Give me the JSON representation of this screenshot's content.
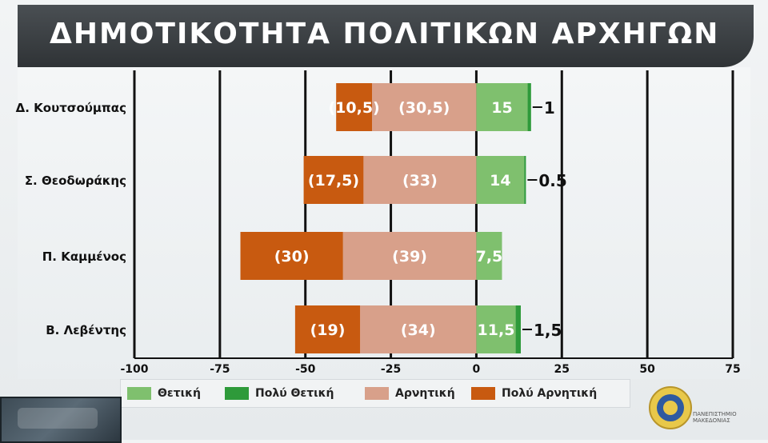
{
  "colors": {
    "positive": "#7fc06e",
    "very_positive": "#2e9a3a",
    "negative": "#d8a08a",
    "very_negative": "#c85a10"
  },
  "chart_data": {
    "type": "bar",
    "orientation": "horizontal",
    "stacked": "diverging",
    "title": "ΔΗΜΟΤΙΚΟΤΗΤΑ ΠΟΛΙΤΙΚΩΝ ΑΡΧΗΓΩΝ",
    "categories": [
      "Δ. Κουτσούμπας",
      "Σ. Θεοδωράκης",
      "Π. Καμμένος",
      "Β. Λεβέντης"
    ],
    "xlim": [
      -100,
      75
    ],
    "xticks": [
      -100,
      -75,
      -50,
      -25,
      0,
      25,
      50,
      75
    ],
    "grid": true,
    "legend_position": "bottom",
    "series": [
      {
        "name": "Θετική",
        "values": [
          15,
          14,
          7.5,
          11.5
        ],
        "labels": [
          "15",
          "14",
          "7,5",
          "11,5"
        ]
      },
      {
        "name": "Πολύ Θετική",
        "values": [
          1,
          0.5,
          0,
          1.5
        ],
        "labels": [
          "1",
          "0.5",
          "",
          "1,5"
        ]
      },
      {
        "name": "Αρνητική",
        "values": [
          -30.5,
          -33,
          -39,
          -34
        ],
        "labels": [
          "(30,5)",
          "(33)",
          "(39)",
          "(34)"
        ]
      },
      {
        "name": "Πολύ Αρνητική",
        "values": [
          -10.5,
          -17.5,
          -30,
          -19
        ],
        "labels": [
          "(10,5)",
          "(17,5)",
          "(30)",
          "(19)"
        ]
      }
    ]
  },
  "legend": {
    "positive": "Θετική",
    "very_positive": "Πολύ Θετική",
    "negative": "Αρνητική",
    "very_negative": "Πολύ Αρνητική"
  },
  "logo": {
    "line1": "ΠΑΝΕΠΙΣΤΗΜΙΟ",
    "line2": "ΜΑΚΕΔΟΝΙΑΣ"
  }
}
